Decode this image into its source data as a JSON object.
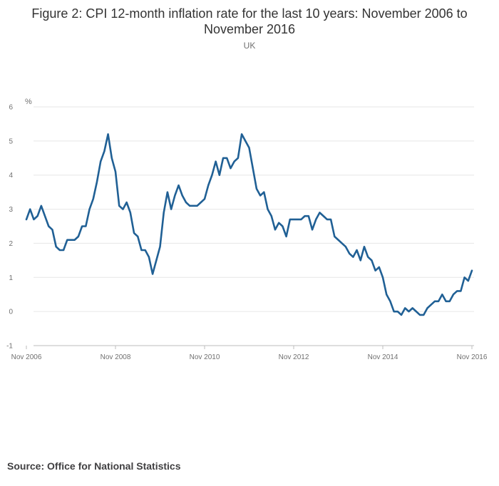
{
  "chart_data": {
    "type": "line",
    "title": "Figure 2: CPI 12-month inflation rate for the last 10 years: November 2006 to November 2016",
    "subtitle": "UK",
    "ylabel": "%",
    "xlabel": "",
    "ylim": [
      -1,
      6
    ],
    "yticks": [
      -1,
      0,
      1,
      2,
      3,
      4,
      5,
      6
    ],
    "xtick_labels": [
      "Nov 2006",
      "Nov 2008",
      "Nov 2010",
      "Nov 2012",
      "Nov 2014",
      "Nov 2016"
    ],
    "grid": true,
    "legend": "none",
    "series": [
      {
        "name": "CPI 12-month inflation rate",
        "color": "#206095",
        "x_start": "Nov 2006",
        "frequency": "monthly",
        "values": [
          2.7,
          3.0,
          2.7,
          2.8,
          3.1,
          2.8,
          2.5,
          2.4,
          1.9,
          1.8,
          1.8,
          2.1,
          2.1,
          2.1,
          2.2,
          2.5,
          2.5,
          3.0,
          3.3,
          3.8,
          4.4,
          4.7,
          5.2,
          4.5,
          4.1,
          3.1,
          3.0,
          3.2,
          2.9,
          2.3,
          2.2,
          1.8,
          1.8,
          1.6,
          1.1,
          1.5,
          1.9,
          2.9,
          3.5,
          3.0,
          3.4,
          3.7,
          3.4,
          3.2,
          3.1,
          3.1,
          3.1,
          3.2,
          3.3,
          3.7,
          4.0,
          4.4,
          4.0,
          4.5,
          4.5,
          4.2,
          4.4,
          4.5,
          5.2,
          5.0,
          4.8,
          4.2,
          3.6,
          3.4,
          3.5,
          3.0,
          2.8,
          2.4,
          2.6,
          2.5,
          2.2,
          2.7,
          2.7,
          2.7,
          2.7,
          2.8,
          2.8,
          2.4,
          2.7,
          2.9,
          2.8,
          2.7,
          2.7,
          2.2,
          2.1,
          2.0,
          1.9,
          1.7,
          1.6,
          1.8,
          1.5,
          1.9,
          1.6,
          1.5,
          1.2,
          1.3,
          1.0,
          0.5,
          0.3,
          0.0,
          0.0,
          -0.1,
          0.1,
          0.0,
          0.1,
          0.0,
          -0.1,
          -0.1,
          0.1,
          0.2,
          0.3,
          0.3,
          0.5,
          0.3,
          0.3,
          0.5,
          0.6,
          0.6,
          1.0,
          0.9,
          1.2
        ]
      }
    ]
  },
  "source": "Source: Office for National Statistics"
}
